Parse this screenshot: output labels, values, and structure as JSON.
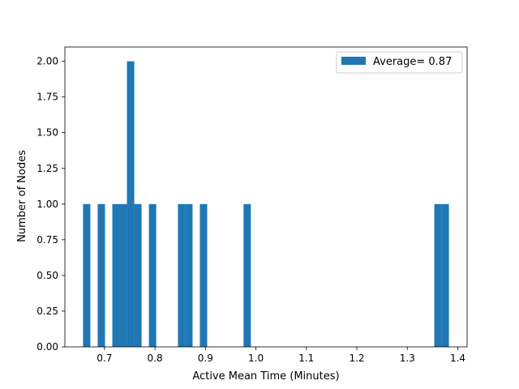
{
  "chart_data": {
    "type": "bar",
    "title": "",
    "xlabel": "Active Mean Time (Minutes)",
    "ylabel": "Number of Nodes",
    "xlim": [
      0.6215,
      1.4185
    ],
    "ylim": [
      0,
      2.1
    ],
    "bin_width": 0.0145,
    "x_ticks": [
      0.7,
      0.8,
      0.9,
      1.0,
      1.1,
      1.2,
      1.3,
      1.4
    ],
    "x_tick_labels": [
      "0.7",
      "0.8",
      "0.9",
      "1.0",
      "1.1",
      "1.2",
      "1.3",
      "1.4"
    ],
    "y_ticks": [
      0,
      0.25,
      0.5,
      0.75,
      1.0,
      1.25,
      1.5,
      1.75,
      2.0
    ],
    "y_tick_labels": [
      "0.00",
      "0.25",
      "0.50",
      "0.75",
      "1.00",
      "1.25",
      "1.50",
      "1.75",
      "2.00"
    ],
    "grid": false,
    "legend_position": "top-right",
    "series": [
      {
        "name": "Average= 0.87",
        "color": "#1f77b4",
        "bins": [
          {
            "x0": 0.6575,
            "x1": 0.672,
            "count": 1
          },
          {
            "x0": 0.6865,
            "x1": 0.701,
            "count": 1
          },
          {
            "x0": 0.7155,
            "x1": 0.73,
            "count": 1
          },
          {
            "x0": 0.73,
            "x1": 0.7445,
            "count": 1
          },
          {
            "x0": 0.7445,
            "x1": 0.759,
            "count": 2
          },
          {
            "x0": 0.759,
            "x1": 0.7735,
            "count": 1
          },
          {
            "x0": 0.788,
            "x1": 0.8025,
            "count": 1
          },
          {
            "x0": 0.8455,
            "x1": 0.86,
            "count": 1
          },
          {
            "x0": 0.86,
            "x1": 0.8745,
            "count": 1
          },
          {
            "x0": 0.889,
            "x1": 0.9035,
            "count": 1
          },
          {
            "x0": 0.9755,
            "x1": 0.99,
            "count": 1
          },
          {
            "x0": 1.3535,
            "x1": 1.368,
            "count": 1
          },
          {
            "x0": 1.368,
            "x1": 1.3825,
            "count": 1
          }
        ]
      }
    ]
  }
}
